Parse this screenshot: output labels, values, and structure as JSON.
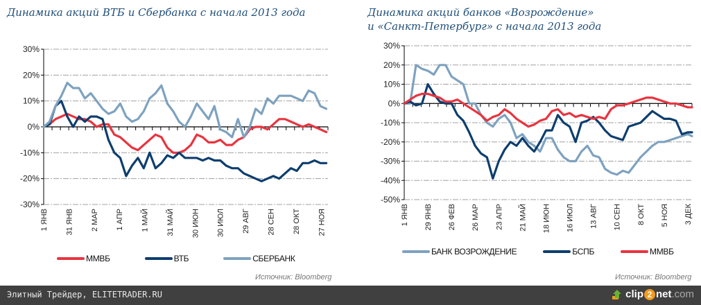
{
  "left_title": "Динамика акций ВТБ и Сбербанка с начала 2013 года",
  "right_title_line1": "Динамика акций банков «Возрождение»",
  "right_title_line2": "и «Санкт-Петербург» с начала 2013 года",
  "source_left": "Источник: Bloomberg",
  "source_right": "Источник: Bloomberg",
  "footer": {
    "text": "Элитный Трейдер, ELITETRADER.RU",
    "logo_prefix": "clip",
    "logo_two": "2",
    "logo_suffix": "net",
    "logo_domain": ".com"
  },
  "colors": {
    "mmvb": "#e8343f",
    "dark": "#0d3e6e",
    "light": "#7ea2bf",
    "grid": "#a0a0a0",
    "title": "#1f4e79"
  },
  "chart_data": [
    {
      "type": "line",
      "title": "Динамика акций ВТБ и Сбербанка с начала 2013 года",
      "xlabel": "",
      "ylabel": "",
      "ylim": [
        -30,
        30
      ],
      "yticks": [
        "30%",
        "20%",
        "10%",
        "0%",
        "-10%",
        "-20%",
        "-30%"
      ],
      "ytick_values": [
        30,
        20,
        10,
        0,
        -10,
        -20,
        -30
      ],
      "xtick_labels": [
        "1 ЯНВ",
        "31 ЯНВ",
        "2 МАР",
        "1 АПР",
        "1 МАЙ",
        "31 МАЙ",
        "30 ИЮН",
        "30 ИЮЛ",
        "29 АВГ",
        "28 СЕН",
        "28 ОКТ",
        "27 НОЯ"
      ],
      "xtick_days": [
        0,
        30,
        60,
        90,
        120,
        150,
        180,
        210,
        240,
        270,
        300,
        330
      ],
      "xlim_days": [
        0,
        338
      ],
      "grid": true,
      "legend_position": "bottom",
      "x_days": [
        0,
        7,
        14,
        21,
        28,
        35,
        42,
        49,
        56,
        63,
        70,
        77,
        84,
        91,
        98,
        105,
        112,
        119,
        126,
        133,
        140,
        147,
        154,
        161,
        168,
        175,
        182,
        189,
        196,
        203,
        210,
        217,
        224,
        231,
        238,
        245,
        252,
        259,
        266,
        273,
        280,
        287,
        294,
        301,
        308,
        315,
        322,
        329,
        336
      ],
      "series": [
        {
          "name": "ММВБ",
          "color": "#e8343f",
          "values": [
            0,
            1,
            3,
            4,
            5,
            4,
            3,
            3,
            2,
            0,
            1,
            1,
            -3,
            -4,
            -6,
            -8,
            -9,
            -7,
            -5,
            -3,
            -4,
            -8,
            -10,
            -10,
            -9,
            -7,
            -3,
            -4,
            -6,
            -6,
            -5,
            -7,
            -7,
            -5,
            -4,
            -1,
            0,
            0,
            -1,
            1,
            3,
            3,
            2,
            1,
            0,
            1,
            0,
            -1,
            -2
          ]
        },
        {
          "name": "ВТБ",
          "color": "#0d3e6e",
          "values": [
            0,
            1,
            8,
            10,
            4,
            0,
            4,
            2,
            4,
            4,
            3,
            -5,
            -10,
            -12,
            -19,
            -15,
            -12,
            -16,
            -10,
            -16,
            -14,
            -11,
            -12,
            -10,
            -12,
            -12,
            -12,
            -13,
            -12,
            -13,
            -13,
            -15,
            -16,
            -16,
            -18,
            -19,
            -20,
            -21,
            -20,
            -19,
            -20,
            -18,
            -16,
            -17,
            -14,
            -14,
            -13,
            -14,
            -14
          ]
        },
        {
          "name": "СБЕРБАНК",
          "color": "#7ea2bf",
          "values": [
            0,
            2,
            8,
            12,
            17,
            15,
            15,
            11,
            13,
            10,
            7,
            5,
            6,
            9,
            4,
            2,
            3,
            6,
            11,
            13,
            16,
            9,
            6,
            2,
            0,
            4,
            9,
            6,
            3,
            8,
            -1,
            -2,
            -4,
            3,
            -4,
            0,
            7,
            5,
            11,
            9,
            12,
            12,
            12,
            11,
            10,
            14,
            13,
            8,
            7
          ]
        }
      ]
    },
    {
      "type": "line",
      "title": "Динамика акций банков «Возрождение» и «Санкт-Петербург» с начала 2013 года",
      "xlabel": "",
      "ylabel": "",
      "ylim": [
        -50,
        30
      ],
      "yticks": [
        "30%",
        "20%",
        "10%",
        "0%",
        "-10%",
        "-20%",
        "-30%",
        "-40%",
        "-50%"
      ],
      "ytick_values": [
        30,
        20,
        10,
        0,
        -10,
        -20,
        -30,
        -40,
        -50
      ],
      "xtick_labels": [
        "1 ЯНВ",
        "29 ЯНВ",
        "26 ФЕВ",
        "26 МАР",
        "23 АПР",
        "21 МАЙ",
        "18 ИЮН",
        "16 ИЮЛ",
        "13 АВГ",
        "10 СЕН",
        "8 ОКТ",
        "5 НОЯ",
        "3 ДЕК"
      ],
      "xtick_days": [
        0,
        28,
        56,
        84,
        112,
        140,
        168,
        196,
        224,
        252,
        280,
        308,
        336
      ],
      "xlim_days": [
        0,
        341
      ],
      "grid": true,
      "legend_position": "bottom",
      "x_days": [
        0,
        7,
        14,
        21,
        28,
        35,
        42,
        49,
        56,
        63,
        70,
        77,
        84,
        91,
        98,
        105,
        112,
        119,
        126,
        133,
        140,
        147,
        154,
        161,
        168,
        175,
        182,
        189,
        196,
        203,
        210,
        217,
        224,
        231,
        238,
        245,
        252,
        259,
        266,
        273,
        280,
        287,
        294,
        301,
        308,
        315,
        322,
        329,
        336,
        341
      ],
      "series": [
        {
          "name": "БАНК ВОЗРОЖДЕНИЕ",
          "color": "#7ea2bf",
          "values": [
            0,
            0,
            20,
            18,
            17,
            15,
            20,
            20,
            14,
            12,
            10,
            0,
            0,
            -6,
            -10,
            -12,
            -8,
            -6,
            -10,
            -18,
            -16,
            -20,
            -22,
            -25,
            -18,
            -18,
            -24,
            -28,
            -30,
            -30,
            -25,
            -22,
            -27,
            -28,
            -34,
            -36,
            -37,
            -35,
            -36,
            -32,
            -28,
            -25,
            -22,
            -20,
            -20,
            -19,
            -18,
            -17,
            -16,
            -17
          ]
        },
        {
          "name": "БСПБ",
          "color": "#0d3e6e",
          "values": [
            0,
            1,
            -1,
            0,
            10,
            5,
            1,
            0,
            0,
            -6,
            -9,
            -15,
            -22,
            -26,
            -28,
            -39,
            -30,
            -24,
            -20,
            -22,
            -18,
            -22,
            -25,
            -20,
            -14,
            -14,
            -6,
            -10,
            -12,
            -20,
            -10,
            -9,
            -7,
            -10,
            -14,
            -17,
            -18,
            -19,
            -12,
            -11,
            -10,
            -7,
            -4,
            -6,
            -8,
            -8,
            -9,
            -16,
            -15,
            -15
          ]
        },
        {
          "name": "ММВБ",
          "color": "#e8343f",
          "values": [
            0,
            2,
            4,
            5,
            5,
            4,
            3,
            1,
            1,
            2,
            0,
            -2,
            -4,
            -6,
            -9,
            -7,
            -6,
            -3,
            -5,
            -8,
            -10,
            -12,
            -11,
            -9,
            -8,
            -4,
            -3,
            -6,
            -5,
            -7,
            -6,
            -7,
            -8,
            -7,
            -8,
            -3,
            -1,
            -1,
            0,
            1,
            2,
            3,
            3,
            2,
            1,
            0,
            0,
            -1,
            -2,
            -2
          ]
        }
      ]
    }
  ]
}
